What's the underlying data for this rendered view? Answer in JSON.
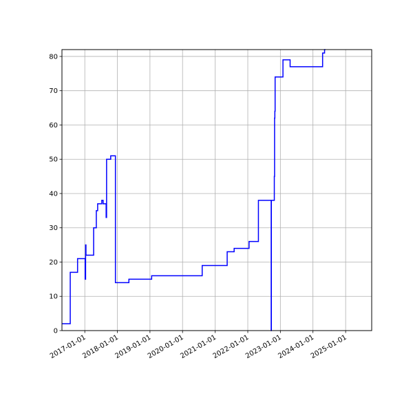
{
  "chart_data": {
    "type": "line",
    "step": true,
    "title": "",
    "xlabel": "",
    "ylabel": "",
    "xlim": [
      "2016-04-20",
      "2025-10-20"
    ],
    "ylim": [
      0,
      82
    ],
    "grid": true,
    "color": "#0000ff",
    "x_ticks": [
      "2017-01-01",
      "2018-01-01",
      "2019-01-01",
      "2020-01-01",
      "2021-01-01",
      "2022-01-01",
      "2023-01-01",
      "2024-01-01",
      "2025-01-01"
    ],
    "y_ticks": [
      "0",
      "10",
      "20",
      "30",
      "40",
      "50",
      "60",
      "70",
      "80"
    ],
    "series": [
      {
        "x": [
          "2016-04-20",
          "2016-07-22",
          "2016-10-12",
          "2017-01-05",
          "2017-01-10",
          "2017-01-14",
          "2017-04-10",
          "2017-05-10",
          "2017-05-25",
          "2017-07-10",
          "2017-07-25",
          "2017-08-28",
          "2017-09-02",
          "2017-10-18",
          "2017-12-10",
          "2018-04-05",
          "2018-05-10",
          "2019-01-20",
          "2020-08-08",
          "2021-05-15",
          "2021-08-01",
          "2022-01-15",
          "2022-04-30",
          "2022-09-20",
          "2022-09-22",
          "2022-10-25",
          "2022-10-28",
          "2022-10-31",
          "2022-11-03",
          "2023-01-30",
          "2023-04-20",
          "2024-04-18",
          "2024-05-10",
          "2024-05-20"
        ],
        "y": [
          2,
          17,
          21,
          15,
          25,
          22,
          30,
          35,
          37,
          38,
          37,
          33,
          50,
          51,
          14,
          14,
          15,
          16,
          19,
          23,
          24,
          26,
          38,
          0,
          38,
          45,
          62,
          64,
          74,
          79,
          77,
          81,
          82,
          82
        ]
      }
    ]
  }
}
